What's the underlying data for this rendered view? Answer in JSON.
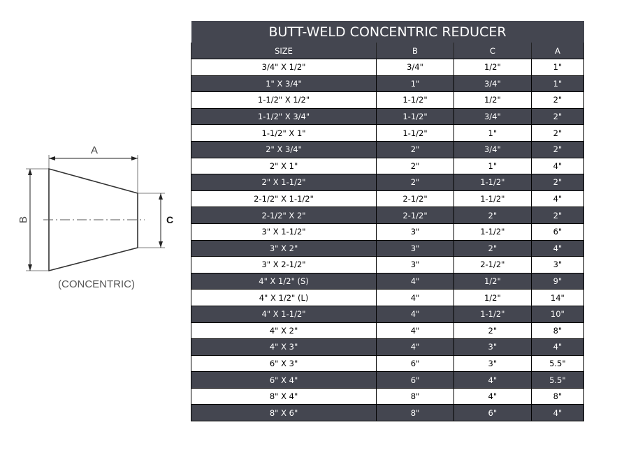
{
  "drawing": {
    "label_a": "A",
    "label_b": "B",
    "label_c": "C",
    "caption": "(CONCENTRIC)"
  },
  "table": {
    "title": "BUTT-WELD CONCENTRIC REDUCER",
    "headers": [
      "SIZE",
      "B",
      "C",
      "A"
    ],
    "rows": [
      [
        "3/4\" X 1/2\"",
        "3/4\"",
        "1/2\"",
        "1\""
      ],
      [
        "1\" X 3/4\"",
        "1\"",
        "3/4\"",
        "1\""
      ],
      [
        "1-1/2\" X 1/2\"",
        "1-1/2\"",
        "1/2\"",
        "2\""
      ],
      [
        "1-1/2\" X 3/4\"",
        "1-1/2\"",
        "3/4\"",
        "2\""
      ],
      [
        "1-1/2\" X 1\"",
        "1-1/2\"",
        "1\"",
        "2\""
      ],
      [
        "2\" X 3/4\"",
        "2\"",
        "3/4\"",
        "2\""
      ],
      [
        "2\" X 1\"",
        "2\"",
        "1\"",
        "4\""
      ],
      [
        "2\" X 1-1/2\"",
        "2\"",
        "1-1/2\"",
        "2\""
      ],
      [
        "2-1/2\" X 1-1/2\"",
        "2-1/2\"",
        "1-1/2\"",
        "4\""
      ],
      [
        "2-1/2\" X 2\"",
        "2-1/2\"",
        "2\"",
        "2\""
      ],
      [
        "3\" X 1-1/2\"",
        "3\"",
        "1-1/2\"",
        "6\""
      ],
      [
        "3\" X 2\"",
        "3\"",
        "2\"",
        "4\""
      ],
      [
        "3\" X 2-1/2\"",
        "3\"",
        "2-1/2\"",
        "3\""
      ],
      [
        "4\" X 1/2\" (S)",
        "4\"",
        "1/2\"",
        "9\""
      ],
      [
        "4\" X 1/2\" (L)",
        "4\"",
        "1/2\"",
        "14\""
      ],
      [
        "4\" X 1-1/2\"",
        "4\"",
        "1-1/2\"",
        "10\""
      ],
      [
        "4\" X 2\"",
        "4\"",
        "2\"",
        "8\""
      ],
      [
        "4\" X 3\"",
        "4\"",
        "3\"",
        "4\""
      ],
      [
        "6\" X 3\"",
        "6\"",
        "3\"",
        "5.5\""
      ],
      [
        "6\" X 4\"",
        "6\"",
        "4\"",
        "5.5\""
      ],
      [
        "8\" X 4\"",
        "8\"",
        "4\"",
        "8\""
      ],
      [
        "8\" X 6\"",
        "8\"",
        "6\"",
        "4\""
      ]
    ]
  },
  "colors": {
    "header_bg": "#444650",
    "header_text": "#ffffff"
  }
}
